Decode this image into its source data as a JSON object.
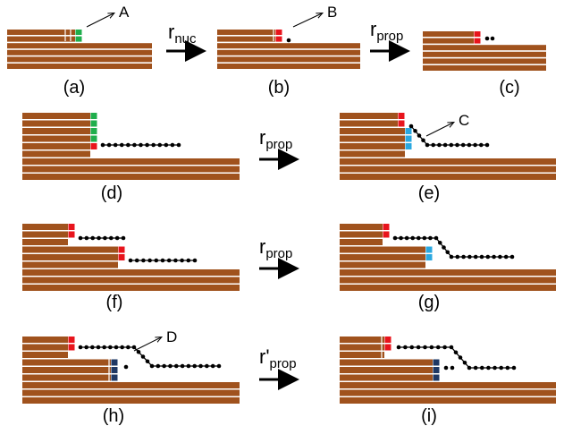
{
  "panel_labels": [
    "(a)",
    "(b)",
    "(c)",
    "(d)",
    "(e)",
    "(f)",
    "(g)",
    "(h)",
    "(i)"
  ],
  "callouts": [
    "A",
    "B",
    "C",
    "D"
  ],
  "rates": [
    {
      "base": "r",
      "sub": "nuc"
    },
    {
      "base": "r",
      "sub": "prop"
    },
    {
      "base": "r",
      "sub": "prop"
    },
    {
      "base": "r",
      "sub": "prop"
    },
    {
      "base": "r'",
      "sub": "prop"
    }
  ]
}
